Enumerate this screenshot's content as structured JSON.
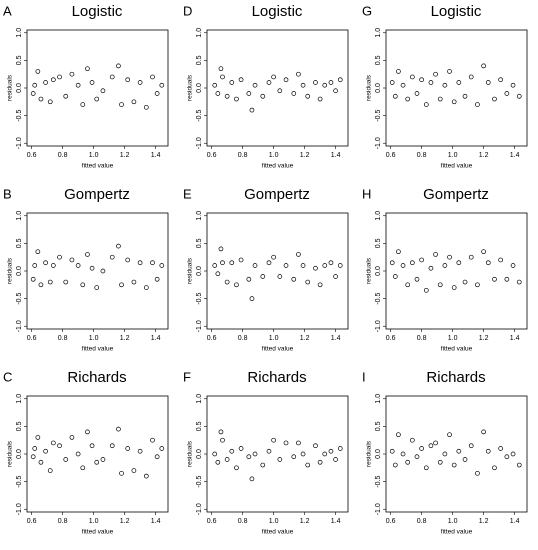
{
  "chart_data": [
    {
      "type": "scatter",
      "label": "A",
      "title": "Logistic",
      "xlabel": "fitted value",
      "ylabel": "residuals",
      "xlim": [
        0.57,
        1.48
      ],
      "ylim": [
        -1.05,
        1.05
      ],
      "xticks": [
        0.6,
        0.8,
        {
          "value": 1,
          "label": "1.0"
        },
        1.2,
        1.4
      ],
      "yticks": [
        {
          "value": -1,
          "label": "-1.0"
        },
        -0.5,
        {
          "value": 0,
          "label": "0.0"
        },
        0.5,
        {
          "value": 1,
          "label": "1.0"
        }
      ],
      "color": "#000000",
      "x": [
        0.61,
        0.62,
        0.64,
        0.66,
        0.69,
        0.72,
        0.74,
        0.78,
        0.82,
        0.86,
        0.9,
        0.93,
        0.96,
        0.99,
        1.02,
        1.06,
        1.12,
        1.16,
        1.18,
        1.22,
        1.26,
        1.3,
        1.34,
        1.38,
        1.41,
        1.44
      ],
      "y": [
        -0.1,
        0.05,
        0.3,
        -0.2,
        0.1,
        -0.25,
        0.15,
        0.2,
        -0.15,
        0.25,
        0.05,
        -0.3,
        0.35,
        0.1,
        -0.2,
        -0.05,
        0.2,
        0.4,
        -0.3,
        0.15,
        -0.25,
        0.1,
        -0.35,
        0.2,
        -0.1,
        0.05
      ]
    },
    {
      "type": "scatter",
      "label": "D",
      "title": "Logistic",
      "xlabel": "fitted value",
      "ylabel": "residuals",
      "xlim": [
        0.57,
        1.48
      ],
      "ylim": [
        -1.05,
        1.05
      ],
      "xticks": [
        0.6,
        0.8,
        {
          "value": 1,
          "label": "1.0"
        },
        1.2,
        1.4
      ],
      "yticks": [
        {
          "value": -1,
          "label": "-1.0"
        },
        -0.5,
        {
          "value": 0,
          "label": "0.0"
        },
        0.5,
        {
          "value": 1,
          "label": "1.0"
        }
      ],
      "color": "#000000",
      "x": [
        0.62,
        0.64,
        0.66,
        0.67,
        0.7,
        0.73,
        0.76,
        0.79,
        0.84,
        0.86,
        0.88,
        0.93,
        0.97,
        1.0,
        1.04,
        1.08,
        1.13,
        1.16,
        1.19,
        1.22,
        1.27,
        1.3,
        1.33,
        1.37,
        1.4,
        1.43
      ],
      "y": [
        0.05,
        -0.1,
        0.35,
        0.2,
        -0.15,
        0.1,
        -0.2,
        0.15,
        -0.1,
        -0.4,
        0.05,
        -0.15,
        0.1,
        0.2,
        -0.05,
        0.15,
        -0.1,
        0.25,
        0.05,
        -0.15,
        0.1,
        -0.2,
        0.05,
        0.1,
        -0.05,
        0.15
      ]
    },
    {
      "type": "scatter",
      "label": "G",
      "title": "Logistic",
      "xlabel": "fitted value",
      "ylabel": "residuals",
      "xlim": [
        0.57,
        1.48
      ],
      "ylim": [
        -1.05,
        1.05
      ],
      "xticks": [
        0.6,
        0.8,
        {
          "value": 1,
          "label": "1.0"
        },
        1.2,
        1.4
      ],
      "yticks": [
        {
          "value": -1,
          "label": "-1.0"
        },
        -0.5,
        {
          "value": 0,
          "label": "0.0"
        },
        0.5,
        {
          "value": 1,
          "label": "1.0"
        }
      ],
      "color": "#000000",
      "x": [
        0.61,
        0.63,
        0.65,
        0.68,
        0.71,
        0.74,
        0.77,
        0.8,
        0.83,
        0.86,
        0.89,
        0.92,
        0.95,
        0.98,
        1.01,
        1.04,
        1.08,
        1.12,
        1.16,
        1.2,
        1.23,
        1.27,
        1.31,
        1.35,
        1.39,
        1.43
      ],
      "y": [
        0.1,
        -0.15,
        0.3,
        0.05,
        -0.2,
        0.2,
        -0.1,
        0.15,
        -0.3,
        0.1,
        0.25,
        -0.2,
        0.05,
        0.3,
        -0.25,
        0.1,
        -0.15,
        0.2,
        -0.3,
        0.4,
        0.1,
        -0.2,
        0.15,
        -0.1,
        0.05,
        -0.15
      ]
    },
    {
      "type": "scatter",
      "label": "B",
      "title": "Gompertz",
      "xlabel": "fitted value",
      "ylabel": "residuals",
      "xlim": [
        0.57,
        1.48
      ],
      "ylim": [
        -1.05,
        1.05
      ],
      "xticks": [
        0.6,
        0.8,
        {
          "value": 1,
          "label": "1.0"
        },
        1.2,
        1.4
      ],
      "yticks": [
        {
          "value": -1,
          "label": "-1.0"
        },
        -0.5,
        {
          "value": 0,
          "label": "0.0"
        },
        0.5,
        {
          "value": 1,
          "label": "1.0"
        }
      ],
      "color": "#000000",
      "x": [
        0.61,
        0.62,
        0.64,
        0.66,
        0.69,
        0.72,
        0.74,
        0.78,
        0.82,
        0.86,
        0.9,
        0.93,
        0.96,
        0.99,
        1.02,
        1.06,
        1.12,
        1.16,
        1.18,
        1.22,
        1.26,
        1.3,
        1.34,
        1.38,
        1.41,
        1.44
      ],
      "y": [
        -0.15,
        0.1,
        0.35,
        -0.25,
        0.15,
        -0.2,
        0.1,
        0.25,
        -0.2,
        0.2,
        0.1,
        -0.25,
        0.3,
        0.05,
        -0.3,
        0.0,
        0.25,
        0.45,
        -0.25,
        0.2,
        -0.2,
        0.15,
        -0.3,
        0.15,
        -0.15,
        0.1
      ]
    },
    {
      "type": "scatter",
      "label": "E",
      "title": "Gompertz",
      "xlabel": "fitted value",
      "ylabel": "residuals",
      "xlim": [
        0.57,
        1.48
      ],
      "ylim": [
        -1.05,
        1.05
      ],
      "xticks": [
        0.6,
        0.8,
        {
          "value": 1,
          "label": "1.0"
        },
        1.2,
        1.4
      ],
      "yticks": [
        {
          "value": -1,
          "label": "-1.0"
        },
        -0.5,
        {
          "value": 0,
          "label": "0.0"
        },
        0.5,
        {
          "value": 1,
          "label": "1.0"
        }
      ],
      "color": "#000000",
      "x": [
        0.62,
        0.64,
        0.66,
        0.67,
        0.7,
        0.73,
        0.76,
        0.79,
        0.84,
        0.86,
        0.88,
        0.93,
        0.97,
        1.0,
        1.04,
        1.08,
        1.13,
        1.16,
        1.19,
        1.22,
        1.27,
        1.3,
        1.33,
        1.37,
        1.4,
        1.43
      ],
      "y": [
        0.1,
        -0.05,
        0.4,
        0.15,
        -0.2,
        0.15,
        -0.25,
        0.2,
        -0.15,
        -0.5,
        0.1,
        -0.1,
        0.15,
        0.25,
        -0.1,
        0.1,
        -0.15,
        0.3,
        0.1,
        -0.2,
        0.05,
        -0.25,
        0.1,
        0.15,
        -0.1,
        0.1
      ]
    },
    {
      "type": "scatter",
      "label": "H",
      "title": "Gompertz",
      "xlabel": "fitted value",
      "ylabel": "residuals",
      "xlim": [
        0.57,
        1.48
      ],
      "ylim": [
        -1.05,
        1.05
      ],
      "xticks": [
        0.6,
        0.8,
        {
          "value": 1,
          "label": "1.0"
        },
        1.2,
        1.4
      ],
      "yticks": [
        {
          "value": -1,
          "label": "-1.0"
        },
        -0.5,
        {
          "value": 0,
          "label": "0.0"
        },
        0.5,
        {
          "value": 1,
          "label": "1.0"
        }
      ],
      "color": "#000000",
      "x": [
        0.61,
        0.63,
        0.65,
        0.68,
        0.71,
        0.74,
        0.77,
        0.8,
        0.83,
        0.86,
        0.89,
        0.92,
        0.95,
        0.98,
        1.01,
        1.04,
        1.08,
        1.12,
        1.16,
        1.2,
        1.23,
        1.27,
        1.31,
        1.35,
        1.39,
        1.43
      ],
      "y": [
        0.15,
        -0.1,
        0.35,
        0.1,
        -0.25,
        0.15,
        -0.15,
        0.2,
        -0.35,
        0.05,
        0.3,
        -0.25,
        0.1,
        0.25,
        -0.3,
        0.15,
        -0.2,
        0.25,
        -0.25,
        0.35,
        0.15,
        -0.15,
        0.2,
        -0.15,
        0.1,
        -0.2
      ]
    },
    {
      "type": "scatter",
      "label": "C",
      "title": "Richards",
      "xlabel": "fitted value",
      "ylabel": "residuals",
      "xlim": [
        0.57,
        1.48
      ],
      "ylim": [
        -1.05,
        1.05
      ],
      "xticks": [
        0.6,
        0.8,
        {
          "value": 1,
          "label": "1.0"
        },
        1.2,
        1.4
      ],
      "yticks": [
        {
          "value": -1,
          "label": "-1.0"
        },
        -0.5,
        {
          "value": 0,
          "label": "0.0"
        },
        0.5,
        {
          "value": 1,
          "label": "1.0"
        }
      ],
      "color": "#000000",
      "x": [
        0.61,
        0.62,
        0.64,
        0.66,
        0.69,
        0.72,
        0.74,
        0.78,
        0.82,
        0.86,
        0.9,
        0.93,
        0.96,
        0.99,
        1.02,
        1.06,
        1.12,
        1.16,
        1.18,
        1.22,
        1.26,
        1.3,
        1.34,
        1.38,
        1.41,
        1.44
      ],
      "y": [
        -0.05,
        0.1,
        0.3,
        -0.15,
        0.05,
        -0.3,
        0.2,
        0.15,
        -0.1,
        0.3,
        0.0,
        -0.25,
        0.4,
        0.15,
        -0.15,
        -0.1,
        0.15,
        0.45,
        -0.35,
        0.1,
        -0.3,
        0.05,
        -0.4,
        0.25,
        -0.05,
        0.1
      ]
    },
    {
      "type": "scatter",
      "label": "F",
      "title": "Richards",
      "xlabel": "fitted value",
      "ylabel": "residuals",
      "xlim": [
        0.57,
        1.48
      ],
      "ylim": [
        -1.05,
        1.05
      ],
      "xticks": [
        0.6,
        0.8,
        {
          "value": 1,
          "label": "1.0"
        },
        1.2,
        1.4
      ],
      "yticks": [
        {
          "value": -1,
          "label": "-1.0"
        },
        -0.5,
        {
          "value": 0,
          "label": "0.0"
        },
        0.5,
        {
          "value": 1,
          "label": "1.0"
        }
      ],
      "color": "#000000",
      "x": [
        0.62,
        0.64,
        0.66,
        0.67,
        0.7,
        0.73,
        0.76,
        0.79,
        0.84,
        0.86,
        0.88,
        0.93,
        0.97,
        1.0,
        1.04,
        1.08,
        1.13,
        1.16,
        1.19,
        1.22,
        1.27,
        1.3,
        1.33,
        1.37,
        1.4,
        1.43
      ],
      "y": [
        0.0,
        -0.15,
        0.4,
        0.25,
        -0.1,
        0.05,
        -0.25,
        0.1,
        -0.05,
        -0.45,
        0.0,
        -0.2,
        0.05,
        0.25,
        -0.1,
        0.2,
        -0.05,
        0.2,
        0.0,
        -0.2,
        0.15,
        -0.15,
        0.0,
        0.05,
        -0.1,
        0.1
      ]
    },
    {
      "type": "scatter",
      "label": "I",
      "title": "Richards",
      "xlabel": "fitted value",
      "ylabel": "residuals",
      "xlim": [
        0.57,
        1.48
      ],
      "ylim": [
        -1.05,
        1.05
      ],
      "xticks": [
        0.6,
        0.8,
        {
          "value": 1,
          "label": "1.0"
        },
        1.2,
        1.4
      ],
      "yticks": [
        {
          "value": -1,
          "label": "-1.0"
        },
        -0.5,
        {
          "value": 0,
          "label": "0.0"
        },
        0.5,
        {
          "value": 1,
          "label": "1.0"
        }
      ],
      "color": "#000000",
      "x": [
        0.61,
        0.63,
        0.65,
        0.68,
        0.71,
        0.74,
        0.77,
        0.8,
        0.83,
        0.86,
        0.89,
        0.92,
        0.95,
        0.98,
        1.01,
        1.04,
        1.08,
        1.12,
        1.16,
        1.2,
        1.23,
        1.27,
        1.31,
        1.35,
        1.39,
        1.43
      ],
      "y": [
        0.05,
        -0.2,
        0.35,
        0.0,
        -0.15,
        0.25,
        -0.05,
        0.1,
        -0.25,
        0.15,
        0.2,
        -0.15,
        0.0,
        0.35,
        -0.2,
        0.05,
        -0.1,
        0.15,
        -0.35,
        0.4,
        0.05,
        -0.25,
        0.1,
        -0.05,
        0.0,
        -0.2
      ]
    }
  ]
}
